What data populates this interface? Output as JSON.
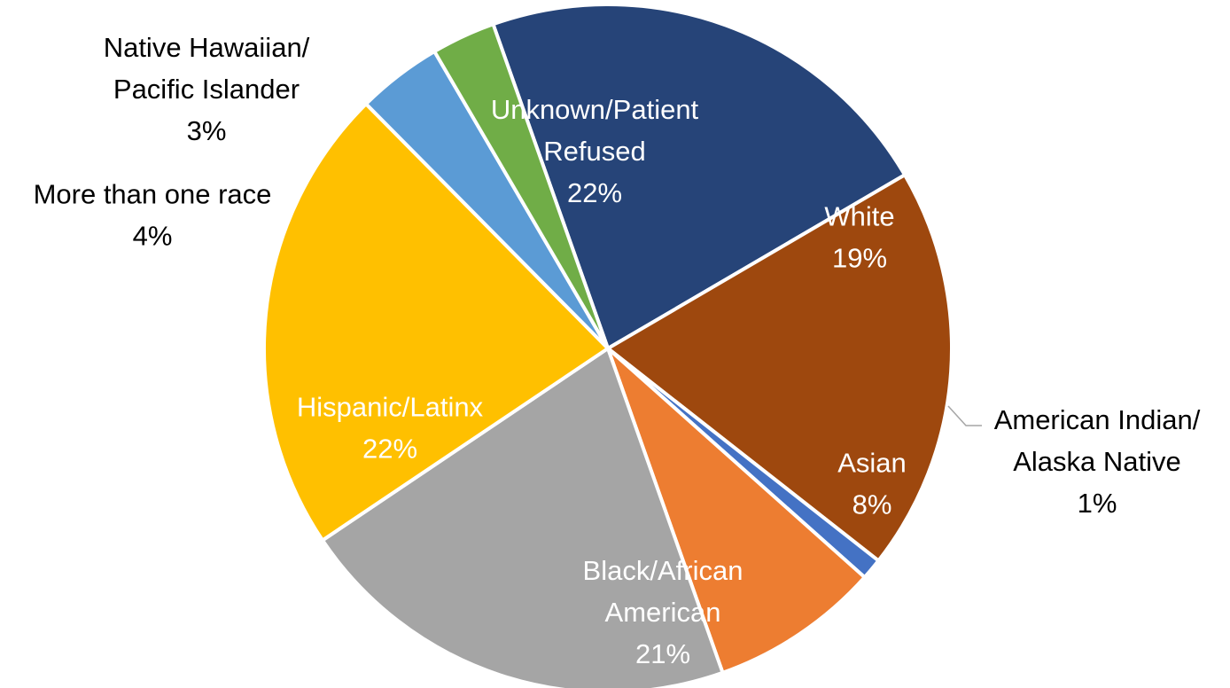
{
  "chart_data": {
    "type": "pie",
    "title": "",
    "colors": {
      "unknown": "#264478",
      "white": "#9e480e",
      "american_indian": "#4472c4",
      "asian": "#ed7d31",
      "black": "#a5a5a5",
      "hispanic": "#ffc000",
      "multi": "#5b9bd5",
      "nhpi": "#70ad47"
    },
    "slices": [
      {
        "key": "unknown",
        "label_lines": [
          "Unknown/Patient",
          "Refused"
        ],
        "pct_text": "22%",
        "value": 22,
        "text_color": "#ffffff",
        "label_place": "inside"
      },
      {
        "key": "white",
        "label_lines": [
          "White"
        ],
        "pct_text": "19%",
        "value": 19,
        "text_color": "#ffffff",
        "label_place": "inside"
      },
      {
        "key": "american_indian",
        "label_lines": [
          "American Indian/",
          "Alaska Native"
        ],
        "pct_text": "1%",
        "value": 1,
        "text_color": "#000000",
        "label_place": "outside"
      },
      {
        "key": "asian",
        "label_lines": [
          "Asian"
        ],
        "pct_text": "8%",
        "value": 8,
        "text_color": "#ffffff",
        "label_place": "inside"
      },
      {
        "key": "black",
        "label_lines": [
          "Black/African",
          "American"
        ],
        "pct_text": "21%",
        "value": 21,
        "text_color": "#ffffff",
        "label_place": "inside"
      },
      {
        "key": "hispanic",
        "label_lines": [
          "Hispanic/Latinx"
        ],
        "pct_text": "22%",
        "value": 22,
        "text_color": "#ffffff",
        "label_place": "inside"
      },
      {
        "key": "multi",
        "label_lines": [
          "More than one race"
        ],
        "pct_text": "4%",
        "value": 4,
        "text_color": "#000000",
        "label_place": "outside"
      },
      {
        "key": "nhpi",
        "label_lines": [
          "Native Hawaiian/",
          "Pacific Islander"
        ],
        "pct_text": "3%",
        "value": 3,
        "text_color": "#000000",
        "label_place": "outside"
      }
    ]
  }
}
